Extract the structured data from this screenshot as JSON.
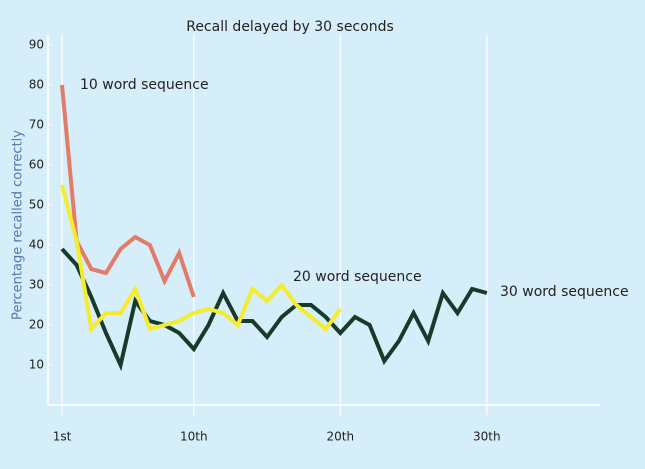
{
  "chart_data": {
    "type": "line",
    "title": "Recall delayed by 30 seconds",
    "y_label": "Percentage recalled correctly",
    "x": [
      1,
      2,
      3,
      4,
      5,
      6,
      7,
      8,
      9,
      10,
      11,
      12,
      13,
      14,
      15,
      16,
      17,
      18,
      19,
      20,
      21,
      22,
      23,
      24,
      25,
      26,
      27,
      28,
      29,
      30
    ],
    "series": [
      {
        "name": "10 word sequence",
        "color": "#e27b68",
        "values": [
          80,
          41,
          34,
          33,
          39,
          42,
          40,
          31,
          38,
          27,
          null,
          null,
          null,
          null,
          null,
          null,
          null,
          null,
          null,
          null,
          null,
          null,
          null,
          null,
          null,
          null,
          null,
          null,
          null,
          null
        ]
      },
      {
        "name": "20 word sequence",
        "color": "#f4ec2c",
        "values": [
          55,
          41,
          19,
          23,
          23,
          29,
          19,
          20,
          21,
          23,
          24,
          23,
          20,
          29,
          26,
          30,
          25,
          22,
          19,
          24,
          null,
          null,
          null,
          null,
          null,
          null,
          null,
          null,
          null,
          null
        ]
      },
      {
        "name": "30 word sequence",
        "color": "#183a2a",
        "values": [
          39,
          35,
          27,
          18,
          10,
          26,
          21,
          20,
          18,
          14,
          20,
          28,
          21,
          21,
          17,
          22,
          25,
          25,
          22,
          18,
          22,
          20,
          11,
          16,
          23,
          16,
          28,
          23,
          29,
          28
        ]
      }
    ],
    "xlim": [
      0,
      38
    ],
    "ylim": [
      0,
      90
    ],
    "xticks": [
      {
        "value": 1,
        "label": "1st"
      },
      {
        "value": 10,
        "label": "10th"
      },
      {
        "value": 20,
        "label": "20th"
      },
      {
        "value": 30,
        "label": "30th"
      }
    ],
    "yticks": [
      10,
      20,
      30,
      40,
      50,
      60,
      70,
      80,
      90
    ],
    "grid": true
  }
}
